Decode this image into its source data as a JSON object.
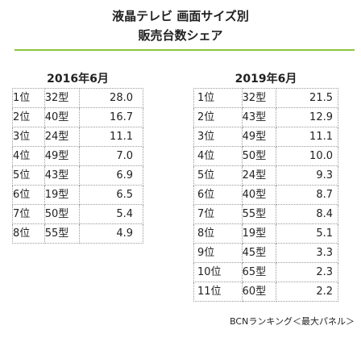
{
  "colors": {
    "accent": "#8cc43f",
    "border": "#9a9a9a"
  },
  "chart_data": {
    "type": "table",
    "title": "液晶テレビ 画面サイズ別",
    "subtitle": "販売台数シェア",
    "source": "BCNランキング＜最大パネル＞",
    "tables": [
      {
        "period": "2016年6月",
        "rows": [
          {
            "rank": "1位",
            "size": "32型",
            "share": 28.0
          },
          {
            "rank": "2位",
            "size": "40型",
            "share": 16.7
          },
          {
            "rank": "3位",
            "size": "24型",
            "share": 11.1
          },
          {
            "rank": "4位",
            "size": "49型",
            "share": 7.0
          },
          {
            "rank": "5位",
            "size": "43型",
            "share": 6.9
          },
          {
            "rank": "6位",
            "size": "19型",
            "share": 6.5
          },
          {
            "rank": "7位",
            "size": "50型",
            "share": 5.4
          },
          {
            "rank": "8位",
            "size": "55型",
            "share": 4.9
          }
        ]
      },
      {
        "period": "2019年6月",
        "rows": [
          {
            "rank": "1位",
            "size": "32型",
            "share": 21.5
          },
          {
            "rank": "2位",
            "size": "43型",
            "share": 12.9
          },
          {
            "rank": "3位",
            "size": "49型",
            "share": 11.1
          },
          {
            "rank": "4位",
            "size": "50型",
            "share": 10.0
          },
          {
            "rank": "5位",
            "size": "24型",
            "share": 9.3
          },
          {
            "rank": "6位",
            "size": "40型",
            "share": 8.7
          },
          {
            "rank": "7位",
            "size": "55型",
            "share": 8.4
          },
          {
            "rank": "8位",
            "size": "19型",
            "share": 5.1
          },
          {
            "rank": "9位",
            "size": "45型",
            "share": 3.3
          },
          {
            "rank": "10位",
            "size": "65型",
            "share": 2.3
          },
          {
            "rank": "11位",
            "size": "60型",
            "share": 2.2
          }
        ]
      }
    ]
  }
}
